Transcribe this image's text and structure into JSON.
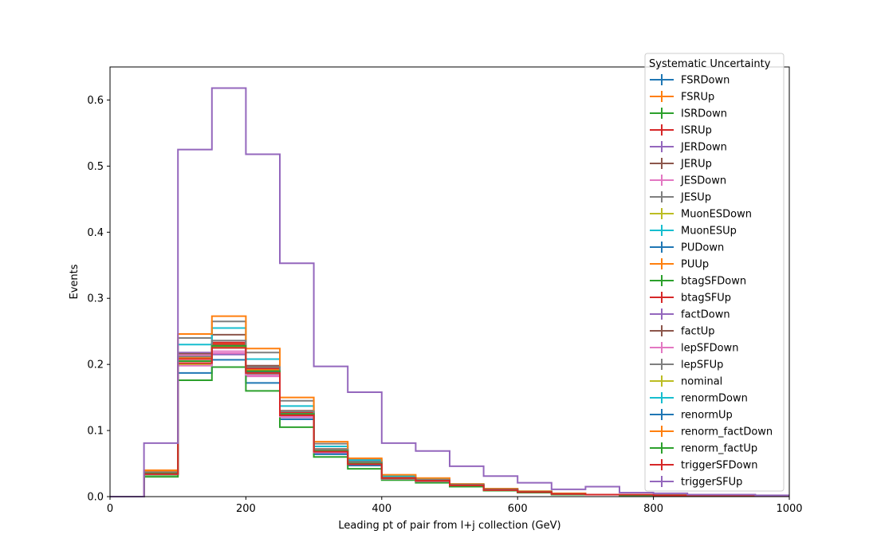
{
  "chart_data": {
    "type": "line",
    "step": true,
    "xlabel": "Leading pt of pair from l+j collection (GeV)",
    "ylabel": "Events",
    "xlim": [
      0,
      1000
    ],
    "ylim": [
      0,
      0.65
    ],
    "xticks": [
      0,
      200,
      400,
      600,
      800,
      1000
    ],
    "yticks": [
      0.0,
      0.1,
      0.2,
      0.3,
      0.4,
      0.5,
      0.6
    ],
    "grid": false,
    "legend": {
      "title": "Systematic Uncertainty",
      "placement": "upper right"
    },
    "bin_edges": [
      0,
      50,
      100,
      150,
      200,
      250,
      300,
      350,
      400,
      450,
      500,
      550,
      600,
      650,
      700,
      750,
      800,
      850,
      900,
      950,
      1000
    ],
    "series": [
      {
        "name": "FSRDown",
        "color": "#1f77b4",
        "values": [
          0,
          0.034,
          0.205,
          0.228,
          0.189,
          0.124,
          0.068,
          0.05,
          0.028,
          0.024,
          0.017,
          0.01,
          0.007,
          0.004,
          0.003,
          0.003,
          0.002,
          0.002,
          0.002,
          0.001
        ]
      },
      {
        "name": "FSRUp",
        "color": "#ff7f0e",
        "values": [
          0,
          0.038,
          0.21,
          0.232,
          0.192,
          0.127,
          0.07,
          0.051,
          0.029,
          0.025,
          0.018,
          0.011,
          0.007,
          0.004,
          0.003,
          0.003,
          0.002,
          0.002,
          0.002,
          0.001
        ]
      },
      {
        "name": "ISRDown",
        "color": "#2ca02c",
        "values": [
          0,
          0.033,
          0.2,
          0.225,
          0.185,
          0.122,
          0.067,
          0.049,
          0.028,
          0.024,
          0.017,
          0.01,
          0.007,
          0.004,
          0.003,
          0.003,
          0.002,
          0.002,
          0.002,
          0.001
        ]
      },
      {
        "name": "ISRUp",
        "color": "#d62728",
        "values": [
          0,
          0.036,
          0.213,
          0.233,
          0.194,
          0.128,
          0.071,
          0.052,
          0.029,
          0.025,
          0.018,
          0.011,
          0.007,
          0.004,
          0.003,
          0.003,
          0.002,
          0.002,
          0.002,
          0.001
        ]
      },
      {
        "name": "JERDown",
        "color": "#9467bd",
        "values": [
          0,
          0.035,
          0.218,
          0.215,
          0.183,
          0.12,
          0.066,
          0.048,
          0.027,
          0.023,
          0.016,
          0.01,
          0.007,
          0.004,
          0.003,
          0.003,
          0.002,
          0.002,
          0.002,
          0.001
        ]
      },
      {
        "name": "JERUp",
        "color": "#8c564b",
        "values": [
          0,
          0.035,
          0.216,
          0.245,
          0.198,
          0.13,
          0.072,
          0.053,
          0.03,
          0.026,
          0.018,
          0.011,
          0.008,
          0.004,
          0.003,
          0.003,
          0.002,
          0.002,
          0.002,
          0.001
        ]
      },
      {
        "name": "JESDown",
        "color": "#e377c2",
        "values": [
          0,
          0.034,
          0.214,
          0.217,
          0.182,
          0.125,
          0.069,
          0.05,
          0.028,
          0.024,
          0.017,
          0.01,
          0.007,
          0.004,
          0.003,
          0.003,
          0.002,
          0.002,
          0.002,
          0.001
        ]
      },
      {
        "name": "JESUp",
        "color": "#7f7f7f",
        "values": [
          0,
          0.037,
          0.24,
          0.265,
          0.218,
          0.145,
          0.08,
          0.056,
          0.032,
          0.027,
          0.019,
          0.011,
          0.008,
          0.004,
          0.003,
          0.003,
          0.002,
          0.002,
          0.002,
          0.001
        ]
      },
      {
        "name": "MuonESDown",
        "color": "#bcbd22",
        "values": [
          0,
          0.034,
          0.2,
          0.226,
          0.19,
          0.125,
          0.068,
          0.05,
          0.028,
          0.024,
          0.017,
          0.01,
          0.007,
          0.004,
          0.003,
          0.003,
          0.002,
          0.002,
          0.002,
          0.001
        ]
      },
      {
        "name": "MuonESUp",
        "color": "#17becf",
        "values": [
          0,
          0.036,
          0.23,
          0.255,
          0.208,
          0.137,
          0.076,
          0.055,
          0.031,
          0.026,
          0.019,
          0.011,
          0.008,
          0.004,
          0.003,
          0.003,
          0.002,
          0.002,
          0.002,
          0.001
        ]
      },
      {
        "name": "PUDown",
        "color": "#1f77b4",
        "values": [
          0,
          0.034,
          0.187,
          0.207,
          0.172,
          0.117,
          0.064,
          0.047,
          0.027,
          0.023,
          0.016,
          0.01,
          0.007,
          0.004,
          0.003,
          0.003,
          0.002,
          0.002,
          0.002,
          0.001
        ]
      },
      {
        "name": "PUUp",
        "color": "#ff7f0e",
        "values": [
          0,
          0.04,
          0.246,
          0.273,
          0.224,
          0.15,
          0.083,
          0.058,
          0.033,
          0.028,
          0.019,
          0.012,
          0.008,
          0.005,
          0.003,
          0.003,
          0.002,
          0.002,
          0.002,
          0.001
        ]
      },
      {
        "name": "btagSFDown",
        "color": "#2ca02c",
        "values": [
          0,
          0.03,
          0.176,
          0.196,
          0.16,
          0.105,
          0.06,
          0.042,
          0.025,
          0.021,
          0.015,
          0.009,
          0.006,
          0.003,
          0.003,
          0.002,
          0.002,
          0.002,
          0.001,
          0.001
        ]
      },
      {
        "name": "btagSFUp",
        "color": "#d62728",
        "values": [
          0,
          0.036,
          0.208,
          0.23,
          0.19,
          0.126,
          0.069,
          0.051,
          0.029,
          0.025,
          0.018,
          0.011,
          0.007,
          0.004,
          0.003,
          0.003,
          0.002,
          0.002,
          0.002,
          0.001
        ]
      },
      {
        "name": "factDown",
        "color": "#9467bd",
        "values": [
          0,
          0.035,
          0.205,
          0.228,
          0.19,
          0.125,
          0.069,
          0.05,
          0.028,
          0.024,
          0.017,
          0.01,
          0.007,
          0.004,
          0.003,
          0.003,
          0.002,
          0.002,
          0.002,
          0.001
        ]
      },
      {
        "name": "factUp",
        "color": "#8c564b",
        "values": [
          0,
          0.035,
          0.205,
          0.228,
          0.19,
          0.125,
          0.069,
          0.05,
          0.028,
          0.024,
          0.017,
          0.01,
          0.007,
          0.004,
          0.003,
          0.003,
          0.002,
          0.002,
          0.002,
          0.001
        ]
      },
      {
        "name": "lepSFDown",
        "color": "#e377c2",
        "values": [
          0,
          0.034,
          0.198,
          0.22,
          0.184,
          0.121,
          0.067,
          0.049,
          0.027,
          0.023,
          0.017,
          0.01,
          0.007,
          0.004,
          0.003,
          0.003,
          0.002,
          0.002,
          0.002,
          0.001
        ]
      },
      {
        "name": "lepSFUp",
        "color": "#7f7f7f",
        "values": [
          0,
          0.036,
          0.212,
          0.236,
          0.196,
          0.129,
          0.071,
          0.052,
          0.029,
          0.025,
          0.018,
          0.011,
          0.007,
          0.004,
          0.003,
          0.003,
          0.002,
          0.002,
          0.002,
          0.001
        ]
      },
      {
        "name": "nominal",
        "color": "#bcbd22",
        "values": [
          0,
          0.035,
          0.205,
          0.228,
          0.19,
          0.125,
          0.069,
          0.05,
          0.028,
          0.024,
          0.017,
          0.01,
          0.007,
          0.004,
          0.003,
          0.003,
          0.002,
          0.002,
          0.002,
          0.001
        ]
      },
      {
        "name": "renormDown",
        "color": "#17becf",
        "values": [
          0,
          0.035,
          0.205,
          0.228,
          0.19,
          0.125,
          0.069,
          0.05,
          0.028,
          0.024,
          0.017,
          0.01,
          0.007,
          0.004,
          0.003,
          0.003,
          0.002,
          0.002,
          0.002,
          0.001
        ]
      },
      {
        "name": "renormUp",
        "color": "#1f77b4",
        "values": [
          0,
          0.035,
          0.205,
          0.228,
          0.19,
          0.125,
          0.069,
          0.05,
          0.028,
          0.024,
          0.017,
          0.01,
          0.007,
          0.004,
          0.003,
          0.003,
          0.002,
          0.002,
          0.002,
          0.001
        ]
      },
      {
        "name": "renorm_factDown",
        "color": "#ff7f0e",
        "values": [
          0,
          0.035,
          0.205,
          0.228,
          0.19,
          0.125,
          0.069,
          0.05,
          0.028,
          0.024,
          0.017,
          0.01,
          0.007,
          0.004,
          0.003,
          0.003,
          0.002,
          0.002,
          0.002,
          0.001
        ]
      },
      {
        "name": "renorm_factUp",
        "color": "#2ca02c",
        "values": [
          0,
          0.035,
          0.205,
          0.228,
          0.19,
          0.125,
          0.069,
          0.05,
          0.028,
          0.024,
          0.017,
          0.01,
          0.007,
          0.004,
          0.003,
          0.003,
          0.002,
          0.002,
          0.002,
          0.001
        ]
      },
      {
        "name": "triggerSFDown",
        "color": "#d62728",
        "values": [
          0,
          0.034,
          0.202,
          0.225,
          0.187,
          0.123,
          0.068,
          0.049,
          0.028,
          0.024,
          0.017,
          0.01,
          0.007,
          0.004,
          0.003,
          0.003,
          0.002,
          0.002,
          0.002,
          0.001
        ]
      },
      {
        "name": "triggerSFUp",
        "color": "#9467bd",
        "values": [
          0,
          0.081,
          0.525,
          0.618,
          0.518,
          0.353,
          0.197,
          0.158,
          0.081,
          0.069,
          0.046,
          0.031,
          0.021,
          0.011,
          0.015,
          0.006,
          0.005,
          0.003,
          0.003,
          0.002
        ]
      }
    ]
  }
}
